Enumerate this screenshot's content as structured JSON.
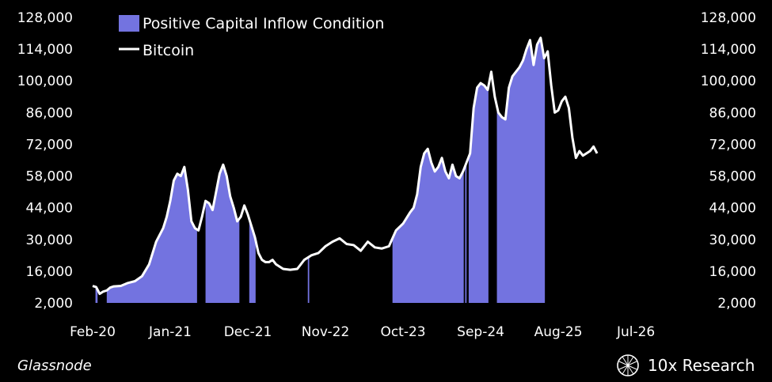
{
  "source_label": "Glassnode",
  "brand_label": "10x Research",
  "colors": {
    "background": "#000000",
    "inflow": "#7373e0",
    "price": "#ffffff"
  },
  "chart_data": {
    "type": "line",
    "title": "",
    "xlabel": "",
    "ylabel": "",
    "y_ticks": [
      "128,000",
      "114,000",
      "100,000",
      "86,000",
      "72,000",
      "58,000",
      "44,000",
      "30,000",
      "16,000",
      "2,000"
    ],
    "ylim": [
      2000,
      128000
    ],
    "x_ticks": [
      "Feb-20",
      "Jan-21",
      "Dec-21",
      "Nov-22",
      "Oct-23",
      "Sep-24",
      "Aug-25",
      "Jul-26"
    ],
    "x_tick_months": [
      0,
      11,
      22,
      33,
      44,
      55,
      66,
      77
    ],
    "x_domain_months": [
      0,
      78
    ],
    "legend": [
      {
        "name": "Positive Capital Inflow Condition",
        "kind": "area"
      },
      {
        "name": "Bitcoin",
        "kind": "line"
      }
    ],
    "series": [
      {
        "name": "Bitcoin",
        "x_months": [
          0,
          0.5,
          1,
          1.5,
          2,
          2.5,
          3,
          4,
          5,
          6,
          7,
          8,
          9,
          10,
          10.5,
          11,
          11.5,
          12,
          12.5,
          13,
          13.5,
          14,
          14.5,
          15,
          15.5,
          16,
          16.5,
          17,
          17.5,
          18,
          18.5,
          19,
          19.5,
          20,
          20.5,
          21,
          21.5,
          22,
          22.5,
          23,
          23.5,
          24,
          24.5,
          25,
          25.5,
          26,
          26.5,
          27,
          28,
          29,
          30,
          31,
          32,
          33,
          33.5,
          34,
          35,
          36,
          37,
          38,
          39,
          40,
          41,
          42,
          43,
          44,
          45,
          45.5,
          46,
          46.5,
          47,
          47.5,
          48,
          48.5,
          49,
          49.5,
          50,
          50.5,
          51,
          51.5,
          52,
          52.5,
          53,
          53.5,
          54,
          54.5,
          55,
          55.5,
          56,
          56.5,
          57,
          57.5,
          58,
          58.5,
          59,
          59.5,
          60,
          60.5,
          61,
          61.5,
          62,
          62.5,
          63,
          63.5,
          64,
          64.5,
          65,
          65.5,
          66,
          66.5,
          67,
          67.5,
          68,
          68.5,
          69,
          69.5,
          70,
          70.5,
          71,
          71.5
        ],
        "values": [
          9500,
          9000,
          6000,
          7000,
          7500,
          8800,
          9300,
          9500,
          10800,
          11600,
          13800,
          19000,
          29000,
          35000,
          40000,
          47000,
          56000,
          59000,
          58000,
          62000,
          52000,
          38000,
          35000,
          34000,
          40000,
          47000,
          46000,
          43000,
          51000,
          59000,
          63000,
          58000,
          49000,
          44000,
          38000,
          40000,
          45000,
          41000,
          36000,
          31000,
          24000,
          21000,
          20000,
          20000,
          21000,
          19000,
          18000,
          17000,
          16600,
          17000,
          21000,
          23000,
          24000,
          27000,
          28000,
          29000,
          30500,
          28000,
          27500,
          25000,
          29000,
          26500,
          26000,
          27000,
          34000,
          37000,
          42000,
          44000,
          50000,
          62000,
          68000,
          70000,
          64000,
          60000,
          62000,
          66000,
          60000,
          57000,
          63000,
          58000,
          57000,
          60000,
          64000,
          68000,
          88000,
          97000,
          99000,
          98000,
          96000,
          104000,
          93000,
          86000,
          84000,
          83000,
          97000,
          102000,
          104000,
          106000,
          109000,
          114000,
          118000,
          107000,
          116000,
          119000,
          110000,
          113000,
          98000,
          86000,
          87000,
          91000,
          93000,
          88000,
          75000,
          66000,
          69000,
          67000,
          68000,
          69000,
          71000,
          68000
        ],
        "color": "#ffffff"
      },
      {
        "name": "Positive Capital Inflow Condition",
        "ranges_months": [
          [
            0.4,
            0.7
          ],
          [
            2.0,
            14.8
          ],
          [
            16.0,
            20.8
          ],
          [
            22.2,
            23.1
          ],
          [
            30.5,
            30.7
          ],
          [
            42.5,
            52.6
          ],
          [
            52.8,
            53.0
          ],
          [
            53.3,
            56.1
          ],
          [
            57.3,
            64.1
          ]
        ],
        "color": "#7373e0"
      }
    ]
  }
}
